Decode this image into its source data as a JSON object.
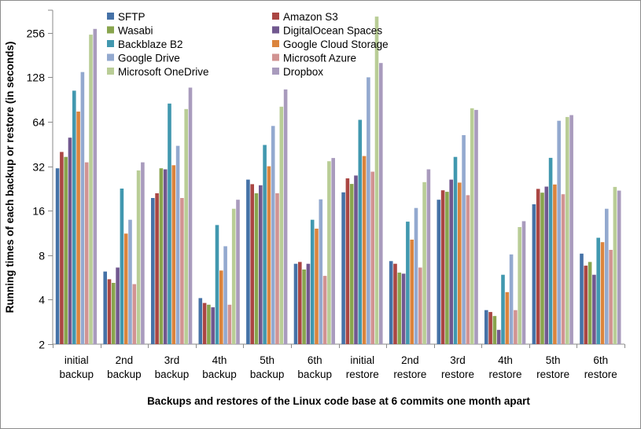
{
  "chart_data": {
    "type": "bar",
    "title": "",
    "xlabel": "Backups and restores of the Linux code base at 6 commits one month apart",
    "ylabel": "Running times of each backup or restore (in seconds)",
    "y_scale": "log2",
    "y_ticks": [
      2,
      4,
      8,
      16,
      32,
      64,
      128,
      256
    ],
    "ylim": [
      2,
      360
    ],
    "grid": false,
    "legend_position": "top",
    "categories": [
      [
        "initial",
        "backup"
      ],
      [
        "2nd",
        "backup"
      ],
      [
        "3rd",
        "backup"
      ],
      [
        "4th",
        "backup"
      ],
      [
        "5th",
        "backup"
      ],
      [
        "6th",
        "backup"
      ],
      [
        "initial",
        "restore"
      ],
      [
        "2nd",
        "restore"
      ],
      [
        "3rd",
        "restore"
      ],
      [
        "4th",
        "restore"
      ],
      [
        "5th",
        "restore"
      ],
      [
        "6th",
        "restore"
      ]
    ],
    "series": [
      {
        "name": "SFTP",
        "color": "#4572A7",
        "values": [
          31,
          6.2,
          19.5,
          4.1,
          26,
          7.0,
          21.3,
          7.3,
          19,
          3.4,
          17.7,
          8.2
        ]
      },
      {
        "name": "Amazon S3",
        "color": "#AA4643",
        "values": [
          40,
          5.5,
          21,
          3.8,
          24.2,
          7.2,
          26.5,
          7.0,
          22,
          3.3,
          22.5,
          6.8
        ]
      },
      {
        "name": "Wasabi",
        "color": "#89A54E",
        "values": [
          37,
          5.2,
          31,
          3.7,
          21,
          6.4,
          24.3,
          6.1,
          21.5,
          3.1,
          21.2,
          7.2
        ]
      },
      {
        "name": "DigitalOcean Spaces",
        "color": "#71588F",
        "values": [
          50,
          6.6,
          30.5,
          3.55,
          23.8,
          7.0,
          27.7,
          6.0,
          26,
          2.5,
          23.3,
          5.9
        ]
      },
      {
        "name": "Backblaze B2",
        "color": "#4198AF",
        "values": [
          104,
          22.6,
          85,
          12.8,
          44.6,
          13.9,
          66,
          13.5,
          37,
          5.9,
          36.5,
          10.5
        ]
      },
      {
        "name": "Google Cloud Storage",
        "color": "#DB843D",
        "values": [
          75,
          11.2,
          32.5,
          6.3,
          32,
          12.1,
          37.5,
          10.2,
          24.8,
          4.5,
          24.1,
          9.8
        ]
      },
      {
        "name": "Google Drive",
        "color": "#93A9CF",
        "values": [
          139,
          13.9,
          44,
          9.2,
          60,
          19.1,
          128,
          16.7,
          52,
          8.1,
          65,
          16.5
        ]
      },
      {
        "name": "Microsoft Azure",
        "color": "#D19392",
        "values": [
          34,
          5.1,
          19.5,
          3.7,
          21,
          5.8,
          29.4,
          6.6,
          20.4,
          3.4,
          20.7,
          8.7
        ]
      },
      {
        "name": "Microsoft OneDrive",
        "color": "#B9CD96",
        "values": [
          249,
          30,
          78,
          16.5,
          81,
          34.6,
          330,
          25,
          79,
          12.4,
          69,
          23.2
        ]
      },
      {
        "name": "Dropbox",
        "color": "#A99BBD",
        "values": [
          272,
          34,
          109,
          19,
          106,
          36.4,
          160,
          30.5,
          77,
          13.6,
          71,
          21.9
        ]
      }
    ],
    "legend_columns": [
      [
        "SFTP",
        "Wasabi",
        "Backblaze B2",
        "Google Drive",
        "Microsoft OneDrive"
      ],
      [
        "Amazon S3",
        "DigitalOcean Spaces",
        "Google Cloud Storage",
        "Microsoft Azure",
        "Dropbox"
      ]
    ]
  },
  "colors": {
    "axis": "#8a8a8a",
    "text": "#000000",
    "background": "#ffffff",
    "border": "#8c8c8c"
  }
}
